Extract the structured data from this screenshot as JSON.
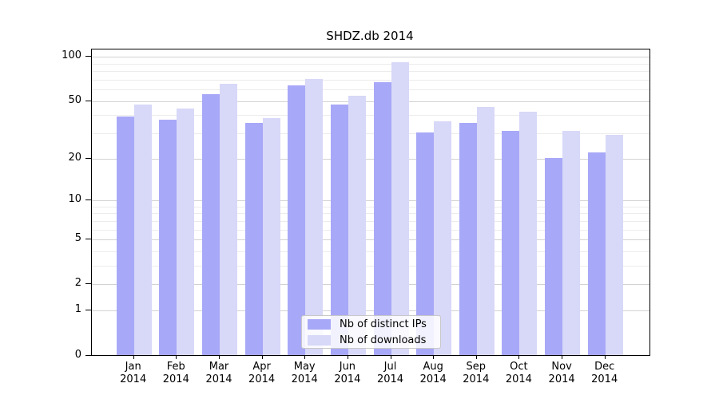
{
  "chart_data": {
    "type": "bar",
    "title": "SHDZ.db 2014",
    "categories": [
      "Jan",
      "Feb",
      "Mar",
      "Apr",
      "May",
      "Jun",
      "Jul",
      "Aug",
      "Sep",
      "Oct",
      "Nov",
      "Dec"
    ],
    "year_label": "2014",
    "series": [
      {
        "name": "Nb of distinct IPs",
        "color": "#a8a8f8",
        "values": [
          39,
          37,
          55,
          35,
          63,
          47,
          67,
          30,
          35,
          31,
          20,
          22
        ]
      },
      {
        "name": "Nb of downloads",
        "color": "#d8d8f8",
        "values": [
          47,
          44,
          65,
          38,
          70,
          54,
          91,
          36,
          45,
          42,
          31,
          29
        ]
      }
    ],
    "yscale": "log1p",
    "ylim": [
      0,
      112
    ],
    "yticks": [
      0,
      1,
      2,
      5,
      10,
      20,
      50,
      100
    ],
    "minor_yticks": [
      3,
      4,
      6,
      7,
      8,
      9,
      30,
      40,
      60,
      70,
      80,
      90
    ],
    "grid": true,
    "legend_position": "lower-center",
    "gridline_major_color": "#d2d2d2",
    "gridline_minor_color": "#ececec"
  }
}
